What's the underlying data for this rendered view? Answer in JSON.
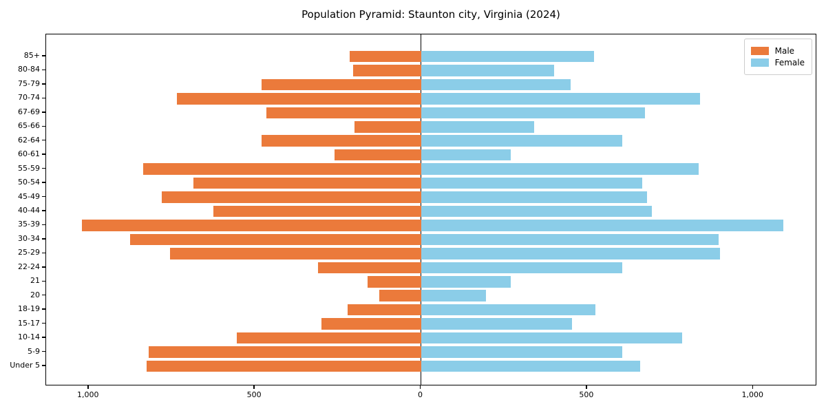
{
  "chart_data": {
    "type": "bar",
    "subtype": "population-pyramid",
    "title": "Population Pyramid: Staunton city, Virginia (2024)",
    "categories_top_to_bottom": [
      "85+",
      "80-84",
      "75-79",
      "70-74",
      "67-69",
      "65-66",
      "62-64",
      "60-61",
      "55-59",
      "50-54",
      "45-49",
      "40-44",
      "35-39",
      "30-34",
      "25-29",
      "22-24",
      "21",
      "20",
      "18-19",
      "15-17",
      "10-14",
      "5-9",
      "Under 5"
    ],
    "series": [
      {
        "name": "Male",
        "side": "left",
        "color": "#EB7A3B",
        "values": [
          215,
          205,
          480,
          735,
          465,
          200,
          480,
          260,
          835,
          685,
          780,
          625,
          1020,
          875,
          755,
          310,
          160,
          125,
          220,
          300,
          555,
          820,
          825
        ]
      },
      {
        "name": "Female",
        "side": "right",
        "color": "#8BCDE8",
        "values": [
          520,
          400,
          450,
          840,
          675,
          340,
          605,
          270,
          835,
          665,
          680,
          695,
          1090,
          895,
          900,
          605,
          270,
          195,
          525,
          455,
          785,
          605,
          660
        ]
      }
    ],
    "x_axis": {
      "tick_values": [
        -1000,
        -500,
        0,
        500,
        1000
      ],
      "tick_labels": [
        "1,000",
        "500",
        "0",
        "500",
        "1,000"
      ],
      "xlim": [
        -1128,
        1192
      ]
    },
    "y_axis": {
      "ticks_side": "left"
    },
    "legend": {
      "position": "upper-right",
      "entries": [
        "Male",
        "Female"
      ]
    },
    "grid": false,
    "background_color": "#ffffff",
    "axis_color": "#000000"
  }
}
